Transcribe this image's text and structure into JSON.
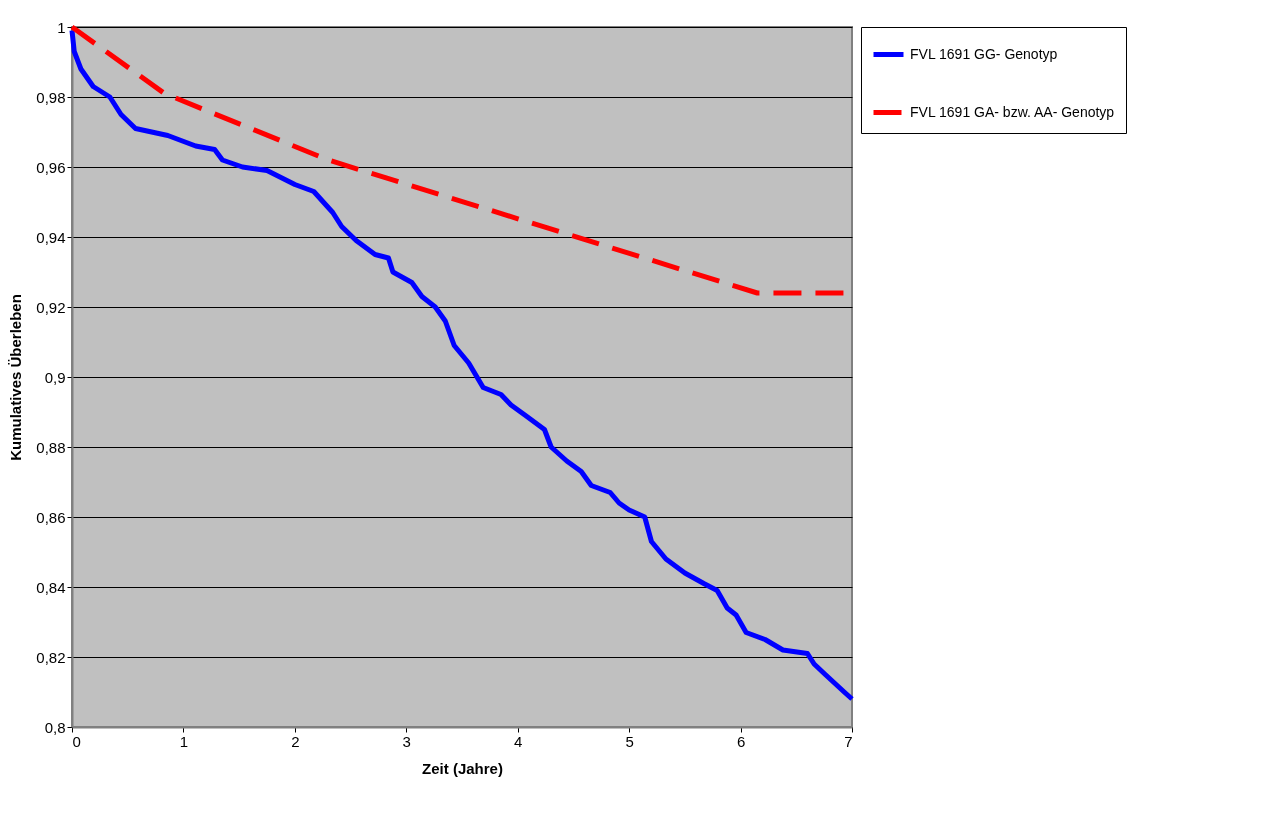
{
  "chart_data": {
    "type": "line",
    "xlabel": "Zeit (Jahre)",
    "ylabel": "Kumulatives Überleben",
    "xlim": [
      0,
      7
    ],
    "xticks": [
      0,
      1,
      2,
      3,
      4,
      5,
      6,
      7
    ],
    "ylim": [
      0.8,
      1
    ],
    "yticks": [
      {
        "value": 0.8,
        "label": "0,8"
      },
      {
        "value": 0.82,
        "label": "0,82"
      },
      {
        "value": 0.84,
        "label": "0,84"
      },
      {
        "value": 0.86,
        "label": "0,86"
      },
      {
        "value": 0.88,
        "label": "0,88"
      },
      {
        "value": 0.9,
        "label": "0,9"
      },
      {
        "value": 0.92,
        "label": "0,92"
      },
      {
        "value": 0.94,
        "label": "0,94"
      },
      {
        "value": 0.96,
        "label": "0,96"
      },
      {
        "value": 0.98,
        "label": "0,98"
      },
      {
        "value": 1,
        "label": "1"
      }
    ],
    "grid": "y",
    "legend": "right",
    "series": [
      {
        "name": "FVL 1691 GG- Genotyp",
        "color": "#0000ff",
        "line_style": "solid",
        "x": [
          0,
          0.02,
          0.08,
          0.19,
          0.34,
          0.44,
          0.57,
          0.86,
          1.11,
          1.28,
          1.35,
          1.53,
          1.75,
          2.0,
          2.17,
          2.34,
          2.42,
          2.55,
          2.72,
          2.84,
          2.88,
          3.05,
          3.14,
          3.26,
          3.35,
          3.43,
          3.56,
          3.69,
          3.85,
          3.94,
          4.07,
          4.24,
          4.3,
          4.44,
          4.57,
          4.66,
          4.83,
          4.91,
          5.0,
          5.14,
          5.2,
          5.33,
          5.5,
          5.67,
          5.79,
          5.88,
          5.96,
          6.05,
          6.22,
          6.38,
          6.6,
          6.66,
          6.76,
          6.93,
          7.0
        ],
        "values": [
          0.999,
          0.993,
          0.988,
          0.983,
          0.98,
          0.975,
          0.971,
          0.969,
          0.966,
          0.965,
          0.962,
          0.96,
          0.959,
          0.955,
          0.953,
          0.947,
          0.943,
          0.939,
          0.935,
          0.934,
          0.93,
          0.927,
          0.923,
          0.92,
          0.916,
          0.909,
          0.904,
          0.897,
          0.895,
          0.892,
          0.889,
          0.885,
          0.88,
          0.876,
          0.873,
          0.869,
          0.867,
          0.864,
          0.862,
          0.86,
          0.853,
          0.848,
          0.844,
          0.841,
          0.839,
          0.834,
          0.832,
          0.827,
          0.825,
          0.822,
          0.821,
          0.818,
          0.815,
          0.81,
          0.808
        ]
      },
      {
        "name": "FVL 1691 GA- bzw. AA- Genotyp",
        "color": "#ff0000",
        "line_style": "dashed",
        "x": [
          0,
          0.83,
          2.3,
          6.15,
          7
        ],
        "values": [
          1,
          0.981,
          0.962,
          0.924,
          0.924
        ]
      }
    ]
  }
}
